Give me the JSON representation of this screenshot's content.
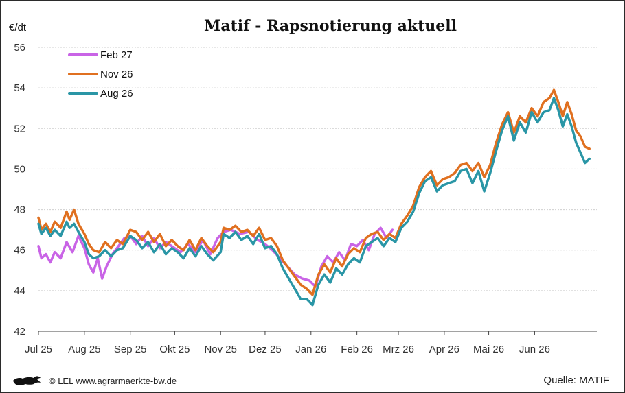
{
  "chart_data": {
    "type": "line",
    "title": "Matif - Rapsnotierung aktuell",
    "ylabel": "€/dt",
    "ylim": [
      42,
      56
    ],
    "yticks": [
      42,
      44,
      46,
      48,
      50,
      52,
      54,
      56
    ],
    "x_range": [
      "2025-07-01",
      "2026-07-13"
    ],
    "xticks": [
      {
        "label": "Jul 25",
        "date": "2025-07-01"
      },
      {
        "label": "Aug 25",
        "date": "2025-08-01"
      },
      {
        "label": "Sep 25",
        "date": "2025-09-01"
      },
      {
        "label": "Okt 25",
        "date": "2025-10-01"
      },
      {
        "label": "Nov 25",
        "date": "2025-11-01"
      },
      {
        "label": "Dez 25",
        "date": "2025-12-01"
      },
      {
        "label": "Jan 26",
        "date": "2026-01-01"
      },
      {
        "label": "Feb 26",
        "date": "2026-02-01"
      },
      {
        "label": "Mrz 26",
        "date": "2026-03-01"
      },
      {
        "label": "Apr 26",
        "date": "2026-04-01"
      },
      {
        "label": "Mai 26",
        "date": "2026-05-01"
      },
      {
        "label": "Jun 26",
        "date": "2026-06-01"
      }
    ],
    "grid": true,
    "legend_position": "top-left",
    "series": [
      {
        "name": "Feb 27",
        "color": "#c964e6",
        "points": [
          [
            "2025-07-01",
            46.2
          ],
          [
            "2025-07-03",
            45.6
          ],
          [
            "2025-07-06",
            45.8
          ],
          [
            "2025-07-09",
            45.4
          ],
          [
            "2025-07-12",
            45.9
          ],
          [
            "2025-07-16",
            45.6
          ],
          [
            "2025-07-20",
            46.4
          ],
          [
            "2025-07-24",
            45.9
          ],
          [
            "2025-07-28",
            46.7
          ],
          [
            "2025-08-01",
            46.1
          ],
          [
            "2025-08-04",
            45.3
          ],
          [
            "2025-08-07",
            44.9
          ],
          [
            "2025-08-10",
            45.6
          ],
          [
            "2025-08-13",
            44.6
          ],
          [
            "2025-08-16",
            45.2
          ],
          [
            "2025-08-20",
            45.8
          ],
          [
            "2025-08-24",
            46.2
          ],
          [
            "2025-08-28",
            46.6
          ],
          [
            "2025-09-01",
            46.7
          ],
          [
            "2025-09-05",
            46.3
          ],
          [
            "2025-09-09",
            46.7
          ],
          [
            "2025-09-13",
            46.2
          ],
          [
            "2025-09-17",
            46.6
          ],
          [
            "2025-09-21",
            46.1
          ],
          [
            "2025-09-25",
            46.4
          ],
          [
            "2025-10-01",
            46.1
          ],
          [
            "2025-10-05",
            45.9
          ],
          [
            "2025-10-10",
            46.3
          ],
          [
            "2025-10-15",
            45.9
          ],
          [
            "2025-10-20",
            46.5
          ],
          [
            "2025-10-25",
            45.8
          ],
          [
            "2025-10-30",
            46.6
          ],
          [
            "2025-11-03",
            46.9
          ],
          [
            "2025-11-08",
            47.0
          ],
          [
            "2025-11-14",
            46.8
          ],
          [
            "2025-11-20",
            46.9
          ],
          [
            "2025-11-26",
            46.5
          ],
          [
            "2025-12-01",
            46.3
          ],
          [
            "2025-12-06",
            46.0
          ],
          [
            "2025-12-11",
            45.6
          ],
          [
            "2025-12-16",
            45.2
          ],
          [
            "2025-12-21",
            44.8
          ],
          [
            "2025-12-26",
            44.6
          ],
          [
            "2025-12-31",
            44.5
          ],
          [
            "2026-01-04",
            44.2
          ],
          [
            "2026-01-08",
            45.2
          ],
          [
            "2026-01-12",
            45.7
          ],
          [
            "2026-01-16",
            45.4
          ],
          [
            "2026-01-20",
            45.9
          ],
          [
            "2026-01-24",
            45.5
          ],
          [
            "2026-01-28",
            46.3
          ],
          [
            "2026-02-01",
            46.2
          ],
          [
            "2026-02-05",
            46.5
          ],
          [
            "2026-02-09",
            46.0
          ],
          [
            "2026-02-13",
            46.8
          ],
          [
            "2026-02-17",
            47.1
          ],
          [
            "2026-02-21",
            46.6
          ],
          [
            "2026-02-25",
            47.0
          ]
        ]
      },
      {
        "name": "Nov 26",
        "color": "#e07020",
        "points": [
          [
            "2025-07-01",
            47.6
          ],
          [
            "2025-07-03",
            47.0
          ],
          [
            "2025-07-06",
            47.3
          ],
          [
            "2025-07-09",
            46.9
          ],
          [
            "2025-07-12",
            47.4
          ],
          [
            "2025-07-16",
            47.1
          ],
          [
            "2025-07-20",
            47.9
          ],
          [
            "2025-07-22",
            47.5
          ],
          [
            "2025-07-25",
            48.0
          ],
          [
            "2025-07-28",
            47.3
          ],
          [
            "2025-08-01",
            46.8
          ],
          [
            "2025-08-04",
            46.3
          ],
          [
            "2025-08-07",
            46.0
          ],
          [
            "2025-08-11",
            45.9
          ],
          [
            "2025-08-15",
            46.4
          ],
          [
            "2025-08-19",
            46.1
          ],
          [
            "2025-08-23",
            46.5
          ],
          [
            "2025-08-27",
            46.3
          ],
          [
            "2025-09-01",
            47.0
          ],
          [
            "2025-09-05",
            46.9
          ],
          [
            "2025-09-09",
            46.5
          ],
          [
            "2025-09-13",
            46.9
          ],
          [
            "2025-09-17",
            46.4
          ],
          [
            "2025-09-21",
            46.8
          ],
          [
            "2025-09-25",
            46.2
          ],
          [
            "2025-09-29",
            46.5
          ],
          [
            "2025-10-03",
            46.2
          ],
          [
            "2025-10-07",
            46.0
          ],
          [
            "2025-10-11",
            46.5
          ],
          [
            "2025-10-15",
            46.0
          ],
          [
            "2025-10-19",
            46.6
          ],
          [
            "2025-10-23",
            46.2
          ],
          [
            "2025-10-27",
            45.9
          ],
          [
            "2025-11-01",
            46.4
          ],
          [
            "2025-11-03",
            47.1
          ],
          [
            "2025-11-07",
            47.0
          ],
          [
            "2025-11-11",
            47.2
          ],
          [
            "2025-11-15",
            46.9
          ],
          [
            "2025-11-19",
            47.0
          ],
          [
            "2025-11-23",
            46.7
          ],
          [
            "2025-11-27",
            47.1
          ],
          [
            "2025-12-01",
            46.5
          ],
          [
            "2025-12-05",
            46.6
          ],
          [
            "2025-12-09",
            46.2
          ],
          [
            "2025-12-13",
            45.5
          ],
          [
            "2025-12-17",
            45.1
          ],
          [
            "2025-12-21",
            44.7
          ],
          [
            "2025-12-25",
            44.3
          ],
          [
            "2025-12-29",
            44.1
          ],
          [
            "2026-01-02",
            43.8
          ],
          [
            "2026-01-06",
            44.8
          ],
          [
            "2026-01-10",
            45.3
          ],
          [
            "2026-01-14",
            44.9
          ],
          [
            "2026-01-18",
            45.6
          ],
          [
            "2026-01-22",
            45.2
          ],
          [
            "2026-01-26",
            45.8
          ],
          [
            "2026-01-30",
            46.1
          ],
          [
            "2026-02-03",
            45.9
          ],
          [
            "2026-02-07",
            46.6
          ],
          [
            "2026-02-11",
            46.8
          ],
          [
            "2026-02-15",
            46.9
          ],
          [
            "2026-02-19",
            46.5
          ],
          [
            "2026-02-23",
            46.8
          ],
          [
            "2026-02-27",
            46.6
          ],
          [
            "2026-03-03",
            47.3
          ],
          [
            "2026-03-07",
            47.7
          ],
          [
            "2026-03-11",
            48.2
          ],
          [
            "2026-03-15",
            49.1
          ],
          [
            "2026-03-19",
            49.6
          ],
          [
            "2026-03-23",
            49.9
          ],
          [
            "2026-03-27",
            49.2
          ],
          [
            "2026-03-31",
            49.5
          ],
          [
            "2026-04-04",
            49.6
          ],
          [
            "2026-04-08",
            49.8
          ],
          [
            "2026-04-12",
            50.2
          ],
          [
            "2026-04-16",
            50.3
          ],
          [
            "2026-04-20",
            49.9
          ],
          [
            "2026-04-24",
            50.3
          ],
          [
            "2026-04-28",
            49.6
          ],
          [
            "2026-05-02",
            50.2
          ],
          [
            "2026-05-06",
            51.3
          ],
          [
            "2026-05-10",
            52.2
          ],
          [
            "2026-05-14",
            52.8
          ],
          [
            "2026-05-18",
            51.8
          ],
          [
            "2026-05-22",
            52.6
          ],
          [
            "2026-05-26",
            52.3
          ],
          [
            "2026-05-30",
            53.0
          ],
          [
            "2026-06-03",
            52.6
          ],
          [
            "2026-06-07",
            53.3
          ],
          [
            "2026-06-11",
            53.5
          ],
          [
            "2026-06-14",
            53.9
          ],
          [
            "2026-06-17",
            53.3
          ],
          [
            "2026-06-20",
            52.6
          ],
          [
            "2026-06-23",
            53.3
          ],
          [
            "2026-06-26",
            52.7
          ],
          [
            "2026-06-29",
            51.9
          ],
          [
            "2026-07-02",
            51.6
          ],
          [
            "2026-07-05",
            51.1
          ],
          [
            "2026-07-08",
            51.0
          ]
        ]
      },
      {
        "name": "Aug 26",
        "color": "#2a96a6",
        "points": [
          [
            "2025-07-01",
            47.3
          ],
          [
            "2025-07-03",
            46.8
          ],
          [
            "2025-07-06",
            47.1
          ],
          [
            "2025-07-09",
            46.7
          ],
          [
            "2025-07-12",
            47.0
          ],
          [
            "2025-07-16",
            46.7
          ],
          [
            "2025-07-20",
            47.4
          ],
          [
            "2025-07-22",
            47.1
          ],
          [
            "2025-07-25",
            47.3
          ],
          [
            "2025-07-28",
            46.9
          ],
          [
            "2025-08-01",
            46.4
          ],
          [
            "2025-08-04",
            45.8
          ],
          [
            "2025-08-07",
            45.6
          ],
          [
            "2025-08-11",
            45.7
          ],
          [
            "2025-08-15",
            46.0
          ],
          [
            "2025-08-19",
            45.7
          ],
          [
            "2025-08-23",
            46.0
          ],
          [
            "2025-08-27",
            46.1
          ],
          [
            "2025-09-01",
            46.7
          ],
          [
            "2025-09-05",
            46.5
          ],
          [
            "2025-09-09",
            46.1
          ],
          [
            "2025-09-13",
            46.4
          ],
          [
            "2025-09-17",
            45.9
          ],
          [
            "2025-09-21",
            46.3
          ],
          [
            "2025-09-25",
            45.8
          ],
          [
            "2025-09-29",
            46.1
          ],
          [
            "2025-10-03",
            45.9
          ],
          [
            "2025-10-07",
            45.6
          ],
          [
            "2025-10-11",
            46.1
          ],
          [
            "2025-10-15",
            45.7
          ],
          [
            "2025-10-19",
            46.2
          ],
          [
            "2025-10-23",
            45.8
          ],
          [
            "2025-10-27",
            45.5
          ],
          [
            "2025-11-01",
            45.9
          ],
          [
            "2025-11-03",
            46.8
          ],
          [
            "2025-11-07",
            46.6
          ],
          [
            "2025-11-11",
            46.9
          ],
          [
            "2025-11-15",
            46.5
          ],
          [
            "2025-11-19",
            46.7
          ],
          [
            "2025-11-23",
            46.3
          ],
          [
            "2025-11-27",
            46.8
          ],
          [
            "2025-12-01",
            46.1
          ],
          [
            "2025-12-05",
            46.2
          ],
          [
            "2025-12-09",
            45.8
          ],
          [
            "2025-12-13",
            45.1
          ],
          [
            "2025-12-17",
            44.6
          ],
          [
            "2025-12-21",
            44.1
          ],
          [
            "2025-12-25",
            43.6
          ],
          [
            "2025-12-29",
            43.6
          ],
          [
            "2026-01-02",
            43.3
          ],
          [
            "2026-01-06",
            44.3
          ],
          [
            "2026-01-10",
            44.8
          ],
          [
            "2026-01-14",
            44.4
          ],
          [
            "2026-01-18",
            45.1
          ],
          [
            "2026-01-22",
            44.8
          ],
          [
            "2026-01-26",
            45.3
          ],
          [
            "2026-01-30",
            45.6
          ],
          [
            "2026-02-03",
            45.4
          ],
          [
            "2026-02-07",
            46.2
          ],
          [
            "2026-02-11",
            46.4
          ],
          [
            "2026-02-15",
            46.6
          ],
          [
            "2026-02-19",
            46.2
          ],
          [
            "2026-02-23",
            46.6
          ],
          [
            "2026-02-27",
            46.4
          ],
          [
            "2026-03-03",
            47.1
          ],
          [
            "2026-03-07",
            47.4
          ],
          [
            "2026-03-11",
            47.9
          ],
          [
            "2026-03-15",
            48.8
          ],
          [
            "2026-03-19",
            49.4
          ],
          [
            "2026-03-23",
            49.6
          ],
          [
            "2026-03-27",
            48.9
          ],
          [
            "2026-03-31",
            49.2
          ],
          [
            "2026-04-04",
            49.3
          ],
          [
            "2026-04-08",
            49.4
          ],
          [
            "2026-04-12",
            49.9
          ],
          [
            "2026-04-16",
            50.0
          ],
          [
            "2026-04-20",
            49.3
          ],
          [
            "2026-04-24",
            49.9
          ],
          [
            "2026-04-28",
            48.9
          ],
          [
            "2026-05-02",
            49.8
          ],
          [
            "2026-05-06",
            50.9
          ],
          [
            "2026-05-10",
            51.9
          ],
          [
            "2026-05-14",
            52.6
          ],
          [
            "2026-05-18",
            51.4
          ],
          [
            "2026-05-22",
            52.3
          ],
          [
            "2026-05-26",
            51.8
          ],
          [
            "2026-05-30",
            52.8
          ],
          [
            "2026-06-03",
            52.3
          ],
          [
            "2026-06-07",
            52.8
          ],
          [
            "2026-06-11",
            52.9
          ],
          [
            "2026-06-14",
            53.5
          ],
          [
            "2026-06-17",
            52.9
          ],
          [
            "2026-06-20",
            52.1
          ],
          [
            "2026-06-23",
            52.7
          ],
          [
            "2026-06-26",
            52.1
          ],
          [
            "2026-06-29",
            51.3
          ],
          [
            "2026-07-02",
            50.8
          ],
          [
            "2026-07-05",
            50.3
          ],
          [
            "2026-07-08",
            50.5
          ]
        ]
      }
    ]
  },
  "footer": {
    "credit": "© LEL www.agrarmaerkte-bw.de",
    "source": "Quelle: MATIF",
    "logo_icon": "lion-icon"
  }
}
